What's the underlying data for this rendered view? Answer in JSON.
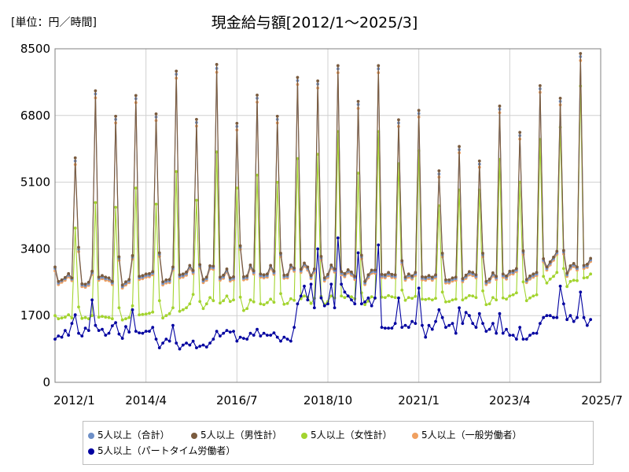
{
  "chart_data": {
    "type": "line",
    "title": "現金給与額[2012/1～2025/3]",
    "unit_label": "[単位：円／時間]",
    "x_start": "2012/1",
    "x_end": "2025/3",
    "xlim": [
      "2012/1",
      "2025/7"
    ],
    "x_ticks": [
      "2012/1",
      "2014/4",
      "2016/7",
      "2018/10",
      "2021/1",
      "2023/4",
      "2025/7"
    ],
    "ylim": [
      0,
      8500
    ],
    "y_ticks": [
      0,
      1700,
      3400,
      5100,
      6800,
      8500
    ],
    "grid": true,
    "legend_position": "bottom",
    "series": [
      {
        "name": "5人以上（合計）",
        "color": "#6d8fc7",
        "values": [
          2900,
          2530,
          2590,
          2640,
          2730,
          2630,
          5640,
          3390,
          2480,
          2460,
          2510,
          2790,
          7350,
          2640,
          2680,
          2640,
          2630,
          2530,
          6700,
          3160,
          2440,
          2520,
          2580,
          3190,
          7230,
          2660,
          2680,
          2720,
          2730,
          2780,
          6760,
          3260,
          2520,
          2570,
          2580,
          2900,
          7850,
          2700,
          2720,
          2770,
          2940,
          2810,
          6620,
          2960,
          2580,
          2640,
          2930,
          2920,
          8000,
          2640,
          2690,
          2850,
          2620,
          2650,
          6520,
          3440,
          2650,
          2670,
          2950,
          2800,
          7240,
          2720,
          2700,
          2720,
          2940,
          2790,
          6700,
          3250,
          2690,
          2700,
          2950,
          2870,
          7690,
          2840,
          3000,
          2900,
          2680,
          2850,
          7600,
          3170,
          2620,
          2710,
          2950,
          2850,
          7990,
          2780,
          2730,
          2830,
          2770,
          2660,
          7080,
          3200,
          2530,
          2700,
          2820,
          2820,
          7990,
          2710,
          2700,
          2760,
          2710,
          2700,
          6610,
          3060,
          2640,
          2720,
          2670,
          2760,
          6850,
          2650,
          2640,
          2680,
          2640,
          2700,
          5310,
          3250,
          2570,
          2570,
          2620,
          2640,
          5930,
          2600,
          2690,
          2780,
          2760,
          2700,
          5560,
          3250,
          2530,
          2590,
          2750,
          2660,
          6960,
          2720,
          2670,
          2790,
          2800,
          2860,
          6290,
          3310,
          2580,
          2670,
          2720,
          2760,
          7480,
          3110,
          2900,
          3030,
          3150,
          3300,
          7160,
          3320,
          2740,
          2930,
          2990,
          2900,
          8300,
          2940,
          2970,
          3120
        ]
      },
      {
        "name": "5人以上（男性計）",
        "color": "#7a5b3e",
        "values": [
          2940,
          2570,
          2610,
          2670,
          2770,
          2660,
          5720,
          3440,
          2510,
          2500,
          2550,
          2830,
          7430,
          2680,
          2720,
          2680,
          2660,
          2570,
          6780,
          3200,
          2480,
          2560,
          2620,
          3230,
          7310,
          2700,
          2720,
          2760,
          2770,
          2820,
          6840,
          3300,
          2560,
          2610,
          2620,
          2940,
          7930,
          2740,
          2760,
          2810,
          2980,
          2850,
          6700,
          3000,
          2620,
          2680,
          2970,
          2960,
          8100,
          2680,
          2730,
          2890,
          2660,
          2690,
          6600,
          3480,
          2690,
          2710,
          2990,
          2840,
          7320,
          2760,
          2740,
          2760,
          2980,
          2830,
          6780,
          3290,
          2730,
          2740,
          2990,
          2910,
          7770,
          2880,
          3040,
          2940,
          2720,
          2890,
          7680,
          3210,
          2660,
          2750,
          2990,
          2890,
          8070,
          2820,
          2770,
          2870,
          2810,
          2700,
          7160,
          3240,
          2570,
          2740,
          2860,
          2860,
          8070,
          2750,
          2740,
          2800,
          2750,
          2740,
          6690,
          3100,
          2680,
          2760,
          2710,
          2800,
          6930,
          2690,
          2680,
          2720,
          2680,
          2740,
          5390,
          3290,
          2610,
          2610,
          2660,
          2680,
          6010,
          2640,
          2730,
          2820,
          2800,
          2740,
          5640,
          3290,
          2570,
          2630,
          2790,
          2700,
          7040,
          2760,
          2710,
          2830,
          2840,
          2900,
          6370,
          3350,
          2620,
          2710,
          2760,
          2800,
          7560,
          3150,
          2940,
          3070,
          3190,
          3340,
          7240,
          3360,
          2780,
          2970,
          3030,
          2940,
          8380,
          2980,
          3010,
          3160
        ]
      },
      {
        "name": "5人以上（女性計）",
        "color": "#a3d42f",
        "values": [
          1700,
          1620,
          1640,
          1660,
          1720,
          1640,
          3930,
          1920,
          1630,
          1650,
          1620,
          1700,
          4580,
          1660,
          1680,
          1660,
          1650,
          1620,
          4460,
          1900,
          1590,
          1620,
          1650,
          1950,
          4950,
          1720,
          1730,
          1740,
          1760,
          1790,
          4540,
          2080,
          1640,
          1700,
          1750,
          1900,
          5370,
          1810,
          1850,
          1900,
          2000,
          2240,
          4640,
          2060,
          1880,
          2000,
          2160,
          2080,
          5870,
          2020,
          2080,
          2200,
          2060,
          2100,
          4950,
          2170,
          1830,
          1880,
          2100,
          2050,
          5280,
          2000,
          1980,
          2030,
          2120,
          2040,
          5100,
          2260,
          1990,
          2010,
          2130,
          2090,
          5700,
          2130,
          2200,
          2170,
          2010,
          2140,
          5810,
          2190,
          1990,
          2060,
          2200,
          2150,
          6390,
          2200,
          2160,
          2200,
          2180,
          2130,
          5330,
          2280,
          1980,
          2070,
          2180,
          2140,
          6390,
          2170,
          2160,
          2210,
          2180,
          2160,
          5570,
          2350,
          2090,
          2160,
          2140,
          2190,
          5900,
          2120,
          2110,
          2130,
          2100,
          2140,
          4500,
          2300,
          2050,
          2060,
          2100,
          2120,
          4900,
          2100,
          2150,
          2210,
          2200,
          2160,
          4900,
          2330,
          1980,
          2000,
          2160,
          2100,
          5680,
          2150,
          2120,
          2200,
          2230,
          2280,
          5100,
          2560,
          2080,
          2150,
          2200,
          2230,
          6190,
          2700,
          2530,
          2630,
          2700,
          2800,
          6500,
          2900,
          2440,
          2570,
          2600,
          2590,
          7550,
          2660,
          2670,
          2760
        ]
      },
      {
        "name": "5人以上（一般労働者）",
        "color": "#f0a060",
        "values": [
          2840,
          2490,
          2550,
          2600,
          2690,
          2590,
          5550,
          3330,
          2440,
          2420,
          2470,
          2750,
          7250,
          2600,
          2640,
          2600,
          2590,
          2490,
          6610,
          3110,
          2400,
          2480,
          2540,
          3140,
          7130,
          2620,
          2640,
          2680,
          2690,
          2740,
          6670,
          3210,
          2480,
          2530,
          2540,
          2860,
          7750,
          2660,
          2680,
          2730,
          2900,
          2770,
          6530,
          2920,
          2540,
          2600,
          2890,
          2880,
          7900,
          2600,
          2650,
          2810,
          2580,
          2610,
          6430,
          3390,
          2610,
          2630,
          2910,
          2760,
          7140,
          2680,
          2660,
          2680,
          2900,
          2750,
          6610,
          3200,
          2650,
          2660,
          2910,
          2830,
          7590,
          2800,
          2960,
          2860,
          2640,
          2810,
          7500,
          3120,
          2580,
          2670,
          2910,
          2810,
          7890,
          2740,
          2690,
          2790,
          2730,
          2620,
          6980,
          3150,
          2490,
          2660,
          2780,
          2780,
          7890,
          2670,
          2660,
          2720,
          2670,
          2660,
          6520,
          3010,
          2600,
          2680,
          2630,
          2720,
          6760,
          2610,
          2600,
          2640,
          2600,
          2660,
          5230,
          3200,
          2530,
          2530,
          2580,
          2600,
          5850,
          2560,
          2650,
          2740,
          2720,
          2660,
          5480,
          3200,
          2490,
          2550,
          2710,
          2620,
          6870,
          2680,
          2630,
          2750,
          2760,
          2820,
          6200,
          3260,
          2540,
          2630,
          2680,
          2720,
          7390,
          3070,
          2860,
          2990,
          3110,
          3260,
          7070,
          3270,
          2700,
          2890,
          2950,
          2860,
          8200,
          2900,
          2930,
          3080
        ]
      },
      {
        "name": "5人以上（パートタイム労働者）",
        "color": "#0000a0",
        "values": [
          1100,
          1180,
          1150,
          1320,
          1200,
          1500,
          1720,
          1250,
          1180,
          1380,
          1320,
          2100,
          1450,
          1320,
          1350,
          1200,
          1250,
          1440,
          1520,
          1230,
          1120,
          1420,
          1280,
          1850,
          1300,
          1260,
          1250,
          1300,
          1300,
          1400,
          1100,
          880,
          1000,
          1100,
          1050,
          1450,
          1000,
          850,
          950,
          1000,
          950,
          1050,
          880,
          920,
          950,
          900,
          1000,
          1100,
          1300,
          1180,
          1250,
          1320,
          1280,
          1300,
          1050,
          1150,
          1120,
          1100,
          1250,
          1200,
          1350,
          1180,
          1250,
          1200,
          1200,
          1260,
          1150,
          1050,
          1150,
          1100,
          1050,
          1400,
          2000,
          2200,
          2450,
          2100,
          2500,
          1900,
          3400,
          2150,
          1950,
          2000,
          2500,
          1900,
          3680,
          2500,
          2300,
          2200,
          2100,
          2000,
          3300,
          2000,
          2050,
          2150,
          1950,
          2150,
          3500,
          1400,
          1380,
          1380,
          1380,
          1500,
          2150,
          1400,
          1450,
          1400,
          1550,
          1500,
          2400,
          1450,
          1150,
          1450,
          1350,
          1550,
          1850,
          1650,
          1400,
          1450,
          1500,
          1250,
          1900,
          1500,
          1780,
          1700,
          1500,
          1400,
          1750,
          1500,
          1300,
          1350,
          1500,
          1250,
          1750,
          1250,
          1350,
          1200,
          1200,
          1100,
          1400,
          1100,
          1100,
          1200,
          1250,
          1250,
          1500,
          1650,
          1700,
          1700,
          1650,
          1650,
          2450,
          2000,
          1600,
          1700,
          1550,
          1650,
          2300,
          1650,
          1450,
          1600
        ]
      }
    ]
  }
}
